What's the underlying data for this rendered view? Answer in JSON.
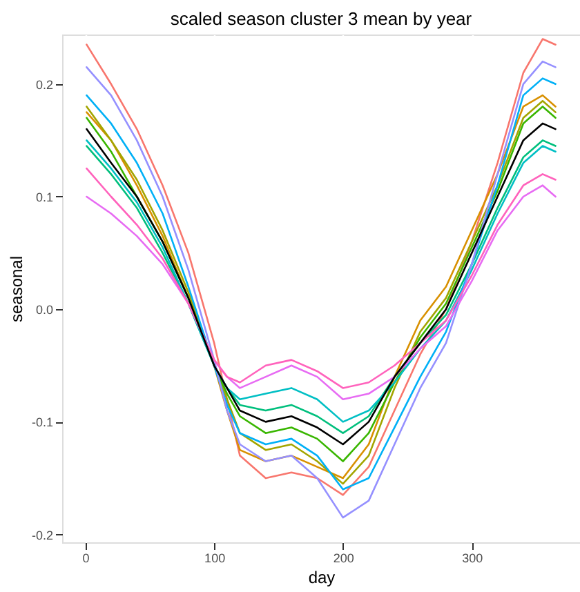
{
  "chart_data": {
    "type": "line",
    "title": "scaled season cluster 3 mean by year",
    "xlabel": "day",
    "ylabel": "seasonal",
    "x": [
      1,
      20,
      40,
      60,
      80,
      100,
      110,
      120,
      140,
      160,
      180,
      200,
      220,
      240,
      260,
      280,
      300,
      320,
      340,
      355,
      365
    ],
    "xlim": [
      -18,
      384
    ],
    "xticks": [
      0,
      100,
      200,
      300
    ],
    "ylim": [
      -0.207,
      0.244
    ],
    "yticks": [
      {
        "value": -0.2,
        "label": "-0.2"
      },
      {
        "value": -0.1,
        "label": "-0.1"
      },
      {
        "value": 0,
        "label": "0.0"
      },
      {
        "value": 0.1,
        "label": "0.1"
      },
      {
        "value": 0.2,
        "label": "0.2"
      }
    ],
    "grid": true,
    "legend": false,
    "line_style": "solid",
    "series": [
      {
        "color": "#f8766d",
        "values": [
          0.235,
          0.2,
          0.16,
          0.11,
          0.05,
          -0.03,
          -0.08,
          -0.13,
          -0.15,
          -0.145,
          -0.15,
          -0.165,
          -0.14,
          -0.09,
          -0.04,
          0.0,
          0.06,
          0.13,
          0.21,
          0.24,
          0.235
        ]
      },
      {
        "color": "#d89000",
        "values": [
          0.175,
          0.15,
          0.11,
          0.065,
          0.01,
          -0.05,
          -0.09,
          -0.125,
          -0.135,
          -0.13,
          -0.14,
          -0.15,
          -0.12,
          -0.06,
          -0.01,
          0.02,
          0.07,
          0.12,
          0.18,
          0.19,
          0.18
        ]
      },
      {
        "color": "#a3a500",
        "values": [
          0.18,
          0.15,
          0.115,
          0.07,
          0.015,
          -0.05,
          -0.08,
          -0.11,
          -0.125,
          -0.12,
          -0.135,
          -0.155,
          -0.13,
          -0.07,
          -0.02,
          0.01,
          0.06,
          0.11,
          0.17,
          0.185,
          0.175
        ]
      },
      {
        "color": "#39b600",
        "values": [
          0.17,
          0.14,
          0.1,
          0.06,
          0.01,
          -0.05,
          -0.075,
          -0.095,
          -0.11,
          -0.105,
          -0.115,
          -0.135,
          -0.11,
          -0.065,
          -0.025,
          0.005,
          0.055,
          0.105,
          0.165,
          0.18,
          0.17
        ]
      },
      {
        "color": "#00bf7d",
        "values": [
          0.145,
          0.12,
          0.09,
          0.05,
          0.005,
          -0.05,
          -0.07,
          -0.085,
          -0.09,
          -0.085,
          -0.095,
          -0.11,
          -0.095,
          -0.06,
          -0.03,
          -0.005,
          0.04,
          0.09,
          0.135,
          0.15,
          0.145
        ]
      },
      {
        "color": "#00bfc4",
        "values": [
          0.15,
          0.125,
          0.095,
          0.055,
          0.005,
          -0.05,
          -0.07,
          -0.08,
          -0.075,
          -0.07,
          -0.08,
          -0.1,
          -0.09,
          -0.065,
          -0.035,
          -0.01,
          0.035,
          0.085,
          0.13,
          0.145,
          0.14
        ]
      },
      {
        "color": "#00b0f6",
        "values": [
          0.19,
          0.165,
          0.13,
          0.085,
          0.02,
          -0.05,
          -0.085,
          -0.11,
          -0.12,
          -0.115,
          -0.13,
          -0.16,
          -0.15,
          -0.105,
          -0.06,
          -0.02,
          0.04,
          0.11,
          0.19,
          0.205,
          0.2
        ]
      },
      {
        "color": "#9590ff",
        "values": [
          0.215,
          0.19,
          0.15,
          0.1,
          0.035,
          -0.045,
          -0.09,
          -0.12,
          -0.135,
          -0.13,
          -0.15,
          -0.185,
          -0.17,
          -0.12,
          -0.07,
          -0.03,
          0.04,
          0.12,
          0.2,
          0.22,
          0.215
        ]
      },
      {
        "color": "#e76bf3",
        "values": [
          0.1,
          0.085,
          0.065,
          0.04,
          0.005,
          -0.045,
          -0.06,
          -0.07,
          -0.06,
          -0.05,
          -0.06,
          -0.08,
          -0.075,
          -0.06,
          -0.035,
          -0.015,
          0.025,
          0.07,
          0.1,
          0.11,
          0.1
        ]
      },
      {
        "color": "#ff62bc",
        "values": [
          0.125,
          0.1,
          0.075,
          0.045,
          0.005,
          -0.045,
          -0.06,
          -0.065,
          -0.05,
          -0.045,
          -0.055,
          -0.07,
          -0.065,
          -0.05,
          -0.03,
          -0.01,
          0.03,
          0.075,
          0.11,
          0.12,
          0.115
        ]
      },
      {
        "color": "#000000",
        "values": [
          0.16,
          0.13,
          0.1,
          0.06,
          0.01,
          -0.05,
          -0.07,
          -0.09,
          -0.1,
          -0.095,
          -0.105,
          -0.12,
          -0.1,
          -0.06,
          -0.03,
          0.0,
          0.05,
          0.1,
          0.15,
          0.165,
          0.16
        ]
      }
    ]
  }
}
